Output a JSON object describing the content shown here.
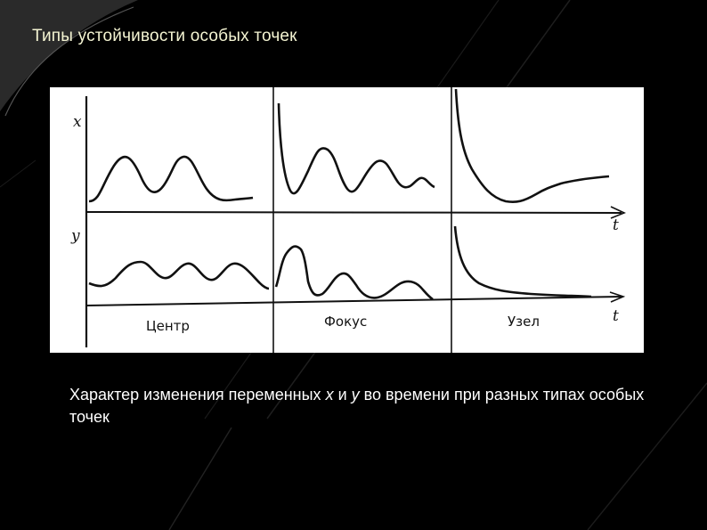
{
  "slide": {
    "title": "Типы устойчивости особых точек",
    "background": "#000000",
    "title_color": "#f4f4d2"
  },
  "figure": {
    "labels": {
      "x_axis": "x",
      "y_axis": "y",
      "t_top": "t",
      "t_bottom": "t"
    },
    "panels": [
      {
        "id": "center",
        "label": "Центр"
      },
      {
        "id": "focus",
        "label": "Фокус"
      },
      {
        "id": "node",
        "label": "Узел"
      }
    ]
  },
  "caption": {
    "part1": "Характер изменения переменных ",
    "var_x": "x",
    "part2": " и ",
    "var_y": "y",
    "part3": " во времени при разных типах особых точек"
  }
}
